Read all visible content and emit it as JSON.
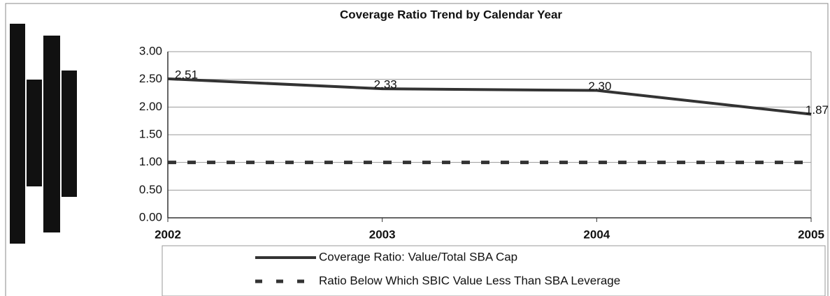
{
  "chart_data": {
    "type": "line",
    "title": "Coverage Ratio Trend by Calendar Year",
    "categories": [
      "2002",
      "2003",
      "2004",
      "2005"
    ],
    "series": [
      {
        "name": "Coverage Ratio:  Value/Total SBA Cap",
        "color": "#333333",
        "dash": false,
        "values": [
          2.51,
          2.33,
          2.3,
          1.87
        ],
        "value_labels": [
          "2.51",
          "2.33",
          "2.30",
          "1.87"
        ]
      },
      {
        "name": "Ratio Below Which SBIC Value Less Than SBA Leverage",
        "color": "#333333",
        "dash": true,
        "values": [
          1,
          1,
          1,
          1
        ]
      }
    ],
    "ylim": [
      0,
      3
    ],
    "yticks": [
      {
        "value": 0,
        "label": "0.00"
      },
      {
        "value": 0.5,
        "label": "0.50"
      },
      {
        "value": 1,
        "label": "1.00"
      },
      {
        "value": 1.5,
        "label": "1.50"
      },
      {
        "value": 2,
        "label": "2.00"
      },
      {
        "value": 2.5,
        "label": "2.50"
      },
      {
        "value": 3,
        "label": "3.00"
      }
    ],
    "grid": true,
    "legend": "bottom"
  }
}
